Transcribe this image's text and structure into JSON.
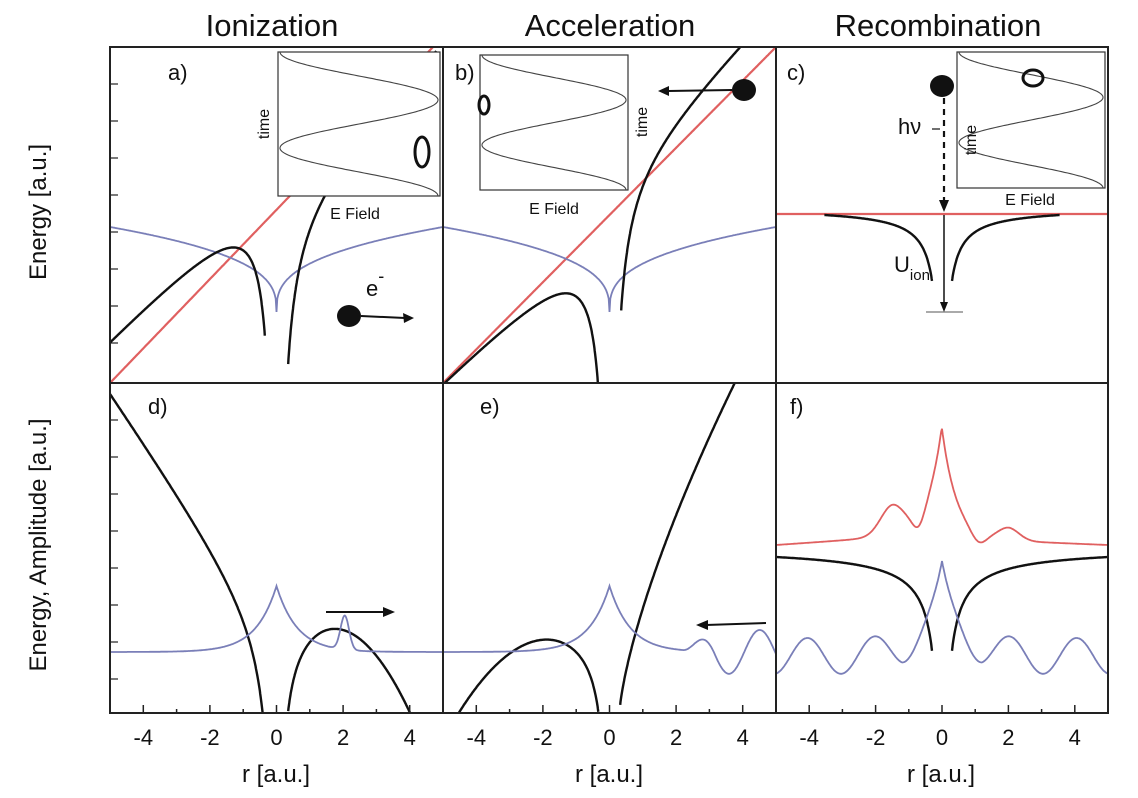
{
  "titles": {
    "ionization": "Ionization",
    "acceleration": "Acceleration",
    "recombination": "Recombination"
  },
  "axes": {
    "top_ylabel": "Energy [a.u.]",
    "bottom_ylabel": "Energy, Amplitude [a.u.]",
    "xlabel_left": "r [a.u.]",
    "xlabel_middle": "r [a.u.]",
    "xlabel_right": "r [a.u.]",
    "x_ticks": [
      "-4",
      "-2",
      "0",
      "2",
      "4"
    ],
    "x_range": [
      -5,
      5
    ]
  },
  "panels": {
    "a": "a)",
    "b": "b)",
    "c": "c)",
    "d": "d)",
    "e": "e)",
    "f": "f)"
  },
  "insets": {
    "a": {
      "xlabel": "E Field",
      "ylabel": "time"
    },
    "b": {
      "xlabel": "E Field",
      "ylabel": "time"
    },
    "c": {
      "xlabel": "E Field",
      "ylabel": "time"
    }
  },
  "annotations": {
    "electron": "e",
    "electron_sup": "-",
    "photon": "hν",
    "uion_main": "U",
    "uion_sub": "ion"
  },
  "colors": {
    "potential": "#111111",
    "field": "#e06060",
    "wavefunction": "#7a7fb8",
    "frame": "#222222"
  }
}
